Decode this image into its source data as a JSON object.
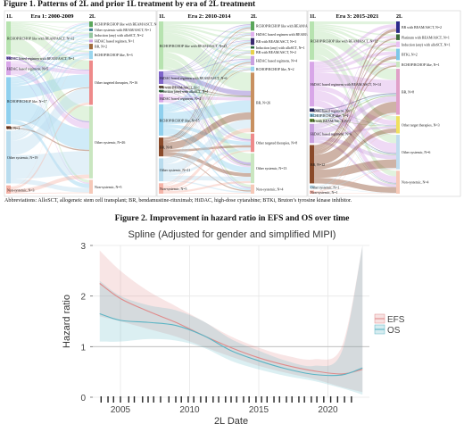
{
  "figure1": {
    "title": "Figure 1. Patterns of 2L and prior 1L treatment by era of 2L treatment",
    "abbreviations": "Abbreviations: AlloSCT, allogeneic stem cell transplant; BR, bendamustine-rituximab; HiDAC, high-dose cytarabine; BTKi, Bruton’s tyrosine kinase inhibitor.",
    "axis_left": "1L",
    "axis_right": "2L",
    "colors": {
      "rchop": "#f6c7d6",
      "hidac": "#c8a8e8",
      "bendamustine": "#f5d6a8",
      "other": "#9fd0ea",
      "nonsystemic": "#f3b8ae",
      "r2l_a": "#9ad39a",
      "r2l_b": "#e88a8a",
      "green_flow": "#7fd07f",
      "blue_flow": "#8ec6e6"
    }
  },
  "chart_data": [
    {
      "type": "sankey",
      "title": "Era 1: 2000-2009",
      "left_nodes": [
        {
          "label": "RCHOP/RCHOP like with BEAM/ASCT, N=12",
          "color": "#b7e3b0",
          "size": 12
        },
        {
          "label": "HiDAC based regimen with BEAM/ASCT, N=1",
          "color": "#7e63c9",
          "size": 1
        },
        {
          "label": "HiDAC based regimens, N=5",
          "color": "#d8a6e8",
          "size": 5
        },
        {
          "label": "RCHOP/RCHOP like, N=17",
          "color": "#8fd0ee",
          "size": 17
        },
        {
          "label": "BR, N=1",
          "color": "#8a4a2a",
          "size": 1
        },
        {
          "label": "Other systemic, N=19",
          "color": "#b9dcee",
          "size": 19
        },
        {
          "label": "Non-systemic, N=3",
          "color": "#f5b4a8",
          "size": 3
        }
      ],
      "right_nodes": [
        {
          "label": "RCHOP/RCHOP like with BEAM/ASCT, N=2",
          "color": "#5aa65a",
          "size": 2
        },
        {
          "label": "Other systemic with BEAM/ASCT, N=1",
          "color": "#3f7f8f",
          "size": 1
        },
        {
          "label": "Induction (any) with alloSCT, N=2",
          "color": "#96c8a0",
          "size": 2
        },
        {
          "label": "HiDAC based regimen, N=1",
          "color": "#c9a0e0",
          "size": 1
        },
        {
          "label": "BR, N=2",
          "color": "#a06a3a",
          "size": 2
        },
        {
          "label": "RCHOP/RCHOP like, N=3",
          "color": "#9ad6ee",
          "size": 3
        },
        {
          "label": "Other targeted therapies, N=16",
          "color": "#ee8a8a",
          "size": 16
        },
        {
          "label": "Other systemic, N=26",
          "color": "#c9e6c0",
          "size": 26
        },
        {
          "label": "Non-systemic, N=5",
          "color": "#f6c9b8",
          "size": 5
        }
      ]
    },
    {
      "type": "sankey",
      "title": "Era 2: 2010-2014",
      "left_nodes": [
        {
          "label": "RCHOP/RCHOP like with BEAM/ASCT, N=23",
          "color": "#b7e3b0",
          "size": 23
        },
        {
          "label": "HiDAC based regimen with BEAM/ASCT, N=6",
          "color": "#7e63c9",
          "size": 6
        },
        {
          "label": "BR with BEAM/ASCT, N=1",
          "color": "#5a3a20",
          "size": 1
        },
        {
          "label": "Induction (any) with alloSCT, N=1",
          "color": "#3a7a4a",
          "size": 1
        },
        {
          "label": "HiDAC based regimens, N=4",
          "color": "#d8a6e8",
          "size": 4
        },
        {
          "label": "RCHOP/RCHOP like, N=15",
          "color": "#8fd0ee",
          "size": 15
        },
        {
          "label": "BR, N=9",
          "color": "#8a4a2a",
          "size": 9
        },
        {
          "label": "Other systemic, N=11",
          "color": "#b9dcee",
          "size": 11
        },
        {
          "label": "Non-systemic, N=5",
          "color": "#f5b4a8",
          "size": 5
        }
      ],
      "right_nodes": [
        {
          "label": "RCHOP/RCHOP like with BEAM/ASCT, N=4",
          "color": "#5aa65a",
          "size": 4
        },
        {
          "label": "HiDAC based regimen with BEAM/ASCT, N=2",
          "color": "#e0b0ee",
          "size": 2
        },
        {
          "label": "BR with BEAM/ASCT, N=3",
          "color": "#3a2a70",
          "size": 3
        },
        {
          "label": "Induction (any) with alloSCT, N=1",
          "color": "#2a6a3a",
          "size": 1
        },
        {
          "label": "BR with BEAM/ASCT, N=2",
          "color": "#e8d14a",
          "size": 2
        },
        {
          "label": "HiDAC based regimens, N=4",
          "color": "#c9a0e0",
          "size": 4
        },
        {
          "label": "RCHOP/RCHOP like, N=2",
          "color": "#9ad6ee",
          "size": 2
        },
        {
          "label": "BR, N=26",
          "color": "#c89060",
          "size": 26
        },
        {
          "label": "Other targeted therapies, N=8",
          "color": "#ee8a8a",
          "size": 8
        },
        {
          "label": "Other systemic, N=13",
          "color": "#c9e6c0",
          "size": 13
        },
        {
          "label": "Non-systemic, N=4",
          "color": "#f6c9b8",
          "size": 4
        }
      ]
    },
    {
      "type": "sankey",
      "title": "Era 3: 2015-2021",
      "left_nodes": [
        {
          "label": "RCHOP/RCHOP like with BEAM/ASCT, N=12",
          "color": "#b7e3b0",
          "size": 12
        },
        {
          "label": "HiDAC based regimens with BEAM/ASCT, N=14",
          "color": "#d8a6e8",
          "size": 14
        },
        {
          "label": "HiDAC based regimens, N=1",
          "color": "#2a2a6a",
          "size": 1
        },
        {
          "label": "RCHOP/RCHOP like, N=1",
          "color": "#8fd0ee",
          "size": 1
        },
        {
          "label": "BR with BEAM/ASCT, N=1",
          "color": "#6a9a3a",
          "size": 1
        },
        {
          "label": "HiDAC based regimens, N=6",
          "color": "#c9a0e0",
          "size": 6
        },
        {
          "label": "BR, N=12",
          "color": "#8a4a2a",
          "size": 12
        },
        {
          "label": "Other systemic, N=1",
          "color": "#b9dcee",
          "size": 1
        },
        {
          "label": "Non-systemic, N=1",
          "color": "#f5b4a8",
          "size": 1
        }
      ],
      "right_nodes": [
        {
          "label": "BR with BEAM/ASCT, N=2",
          "color": "#2a2a8a",
          "size": 2
        },
        {
          "label": "Platinum with BEAM/ASCT, N=1",
          "color": "#3a6a3a",
          "size": 1
        },
        {
          "label": "Induction (any) with alloSCT, N=1",
          "color": "#e8c0f0",
          "size": 1
        },
        {
          "label": "BTKi, N=2",
          "color": "#7ec8e8",
          "size": 2
        },
        {
          "label": "RCHOP/RCHOP like, N=1",
          "color": "#c9e6c0",
          "size": 1
        },
        {
          "label": "BR, N=8",
          "color": "#e0a0c8",
          "size": 8
        },
        {
          "label": "Other target therapies, N=3",
          "color": "#f0e060",
          "size": 3
        },
        {
          "label": "Other systemic, N=6",
          "color": "#c0dcee",
          "size": 6
        },
        {
          "label": "Non-systemic, N=4",
          "color": "#f6c9b8",
          "size": 4
        }
      ]
    },
    {
      "type": "line",
      "title": "Figure 2. Improvement in hazard ratio in EFS and OS over time",
      "subtitle": "Spline (Adjusted for gender and simplified MIPI)",
      "xlabel": "2L Date",
      "ylabel": "Hazard ratio",
      "xlim": [
        2003,
        2023
      ],
      "ylim": [
        0,
        3
      ],
      "x_ticks": [
        2005,
        2010,
        2015,
        2020
      ],
      "y_ticks": [
        0,
        1,
        2,
        3
      ],
      "grid": true,
      "legend_position": "right",
      "reference_line": 1,
      "rug": [
        2003.6,
        2004.1,
        2004.5,
        2005.0,
        2005.6,
        2006.0,
        2006.6,
        2007.0,
        2007.4,
        2007.9,
        2008.5,
        2009.0,
        2009.4,
        2009.9,
        2010.3,
        2010.8,
        2011.2,
        2011.7,
        2012.1,
        2012.6,
        2013.0,
        2013.4,
        2013.9,
        2014.3,
        2014.8,
        2015.2,
        2015.6,
        2016.1,
        2016.5,
        2017.0,
        2017.4,
        2017.9,
        2018.3,
        2018.8,
        2019.2,
        2019.7,
        2020.2,
        2020.7,
        2021.2,
        2021.7
      ],
      "series": [
        {
          "name": "EFS",
          "color": "#e08a8a",
          "x": [
            2003.5,
            2005,
            2007,
            2009,
            2011,
            2013,
            2015,
            2017,
            2019,
            2021,
            2022.5
          ],
          "y": [
            2.25,
            1.95,
            1.7,
            1.48,
            1.22,
            0.98,
            0.78,
            0.63,
            0.52,
            0.46,
            0.55
          ],
          "lower": [
            1.6,
            1.5,
            1.35,
            1.2,
            1.0,
            0.8,
            0.62,
            0.48,
            0.36,
            0.2,
            0.1
          ],
          "upper": [
            2.9,
            2.5,
            2.1,
            1.8,
            1.5,
            1.2,
            0.98,
            0.82,
            0.75,
            1.0,
            3.0
          ]
        },
        {
          "name": "OS",
          "color": "#5ab4c4",
          "x": [
            2003.5,
            2005,
            2007,
            2009,
            2011,
            2013,
            2015,
            2017,
            2019,
            2021,
            2022.5
          ],
          "y": [
            1.65,
            1.52,
            1.48,
            1.42,
            1.22,
            0.92,
            0.72,
            0.56,
            0.45,
            0.44,
            0.58
          ],
          "lower": [
            1.1,
            1.1,
            1.15,
            1.12,
            0.98,
            0.72,
            0.55,
            0.42,
            0.32,
            0.18,
            0.05
          ],
          "upper": [
            2.3,
            2.0,
            1.82,
            1.72,
            1.5,
            1.15,
            0.92,
            0.72,
            0.62,
            0.9,
            3.0
          ]
        }
      ]
    }
  ]
}
